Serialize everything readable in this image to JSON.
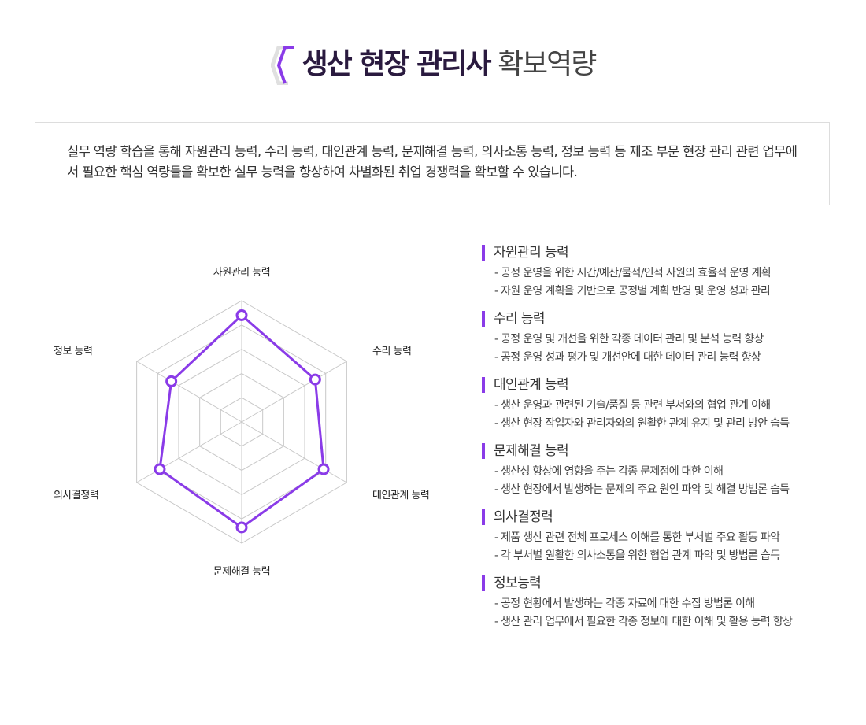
{
  "header": {
    "title_bold": "생산 현장 관리사",
    "title_light": "확보역량",
    "accent": "#8a3be8"
  },
  "description": "실무 역량 학습을 통해 자원관리 능력, 수리 능력, 대인관계 능력, 문제해결 능력, 의사소통 능력, 정보 능력 등 제조 부문 현장 관리 관련 업무에서 필요한 핵심 역량들을 확보한 실무 능력을 향상하여 차별화된 취업 경쟁력을 확보할 수 있습니다.",
  "chart_data": {
    "type": "radar",
    "categories": [
      "자원관리 능력",
      "수리 능력",
      "대인관계 능력",
      "문제해결 능력",
      "의사결정력",
      "정보 능력"
    ],
    "values": [
      4.4,
      3.5,
      3.9,
      4.35,
      3.9,
      3.35
    ],
    "range": [
      0,
      5
    ],
    "grid_levels": 5,
    "color": "#8a3be8",
    "grid_color": "#c8c8c8"
  },
  "sections": [
    {
      "title": "자원관리 능력",
      "items": [
        "- 공정 운영을 위한 시간/예산/물적/인적 사원의 효율적 운영 계획",
        "- 자원 운영 계획을 기반으로 공정별 계획 반영 및 운영 성과 관리"
      ]
    },
    {
      "title": "수리 능력",
      "items": [
        "- 공정 운영 및 개선을 위한 각종 데이터 관리 및 분석 능력 향상",
        "- 공정 운영 성과 평가 및 개선안에 대한 데이터 관리 능력 향상"
      ]
    },
    {
      "title": "대인관계 능력",
      "items": [
        "- 생산 운영과 관련된 기술/품질 등 관련 부서와의 협업 관계 이해",
        "- 생산 현장 작업자와 관리자와의 원활한 관계 유지 및 관리 방안 습득"
      ]
    },
    {
      "title": "문제해결 능력",
      "items": [
        "- 생산성 향상에 영향을 주는 각종 문제점에 대한 이해",
        "- 생산 현장에서 발생하는 문제의 주요 원인 파악 및 해결 방법론 습득"
      ]
    },
    {
      "title": "의사결정력",
      "items": [
        "- 제품 생산 관련 전체 프로세스 이해를 통한 부서별 주요 활동 파악",
        "- 각 부서별 원활한 의사소통을 위한 협업 관계 파악 및 방법론 습득"
      ]
    },
    {
      "title": "정보능력",
      "items": [
        "- 공정 현황에서 발생하는 각종 자료에 대한 수집 방법론 이해",
        "- 생산 관리 업무에서 필요한 각종 정보에 대한 이해 및 활용 능력 향상"
      ]
    }
  ]
}
